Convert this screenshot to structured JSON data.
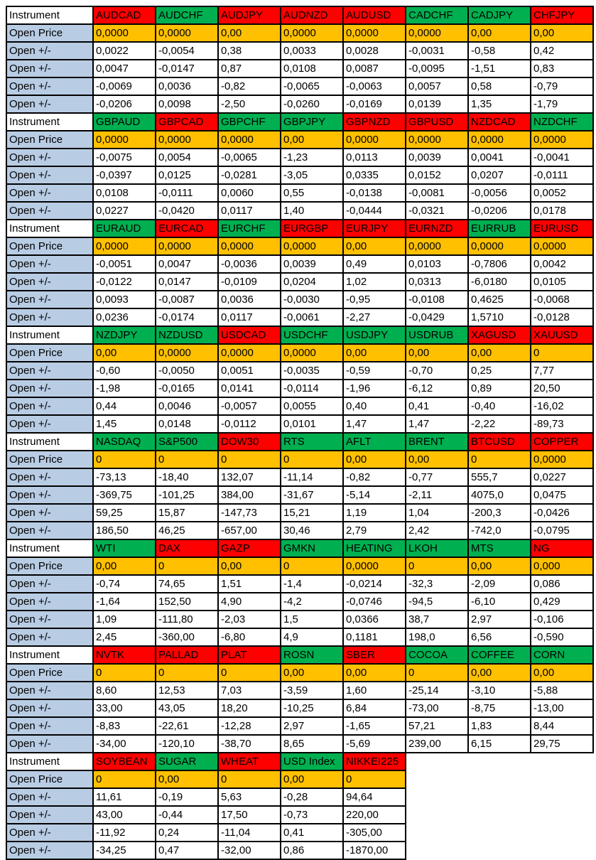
{
  "colors": {
    "red": "#ff0000",
    "green": "#00b050",
    "orange": "#ffc000",
    "label_blue": "#b8cce4",
    "border": "#000000"
  },
  "row_labels": {
    "instrument": "Instrument",
    "open_price": "Open Price",
    "open_change": "Open +/-"
  },
  "blocks": [
    {
      "instruments": [
        {
          "name": "AUDCAD",
          "color": "red",
          "open_price": "0,0000",
          "changes": [
            "0,0022",
            "0,0047",
            "-0,0069",
            "-0,0206"
          ]
        },
        {
          "name": "AUDCHF",
          "color": "green",
          "open_price": "0,0000",
          "changes": [
            "-0,0054",
            "-0,0147",
            "0,0036",
            "0,0098"
          ]
        },
        {
          "name": "AUDJPY",
          "color": "red",
          "open_price": "0,00",
          "changes": [
            "0,38",
            "0,87",
            "-0,82",
            "-2,50"
          ]
        },
        {
          "name": "AUDNZD",
          "color": "red",
          "open_price": "0,0000",
          "changes": [
            "0,0033",
            "0,0108",
            "-0,0065",
            "-0,0260"
          ]
        },
        {
          "name": "AUDUSD",
          "color": "red",
          "open_price": "0,0000",
          "changes": [
            "0,0028",
            "0,0087",
            "-0,0063",
            "-0,0169"
          ]
        },
        {
          "name": "CADCHF",
          "color": "green",
          "open_price": "0,0000",
          "changes": [
            "-0,0031",
            "-0,0095",
            "0,0057",
            "0,0139"
          ]
        },
        {
          "name": "CADJPY",
          "color": "green",
          "open_price": "0,00",
          "changes": [
            "-0,58",
            "-1,51",
            "0,58",
            "1,35"
          ]
        },
        {
          "name": "CHFJPY",
          "color": "red",
          "open_price": "0,00",
          "changes": [
            "0,42",
            "0,83",
            "-0,79",
            "-1,79"
          ]
        }
      ]
    },
    {
      "instruments": [
        {
          "name": "GBPAUD",
          "color": "green",
          "open_price": "0,0000",
          "changes": [
            "-0,0075",
            "-0,0397",
            "0,0108",
            "0,0227"
          ]
        },
        {
          "name": "GBPCAD",
          "color": "red",
          "open_price": "0,0000",
          "changes": [
            "0,0054",
            "0,0125",
            "-0,0111",
            "-0,0420"
          ]
        },
        {
          "name": "GBPCHF",
          "color": "green",
          "open_price": "0,0000",
          "changes": [
            "-0,0065",
            "-0,0281",
            "0,0060",
            "0,0117"
          ]
        },
        {
          "name": "GBPJPY",
          "color": "green",
          "open_price": "0,00",
          "changes": [
            "-1,23",
            "-3,05",
            "0,55",
            "1,40"
          ]
        },
        {
          "name": "GBPNZD",
          "color": "red",
          "open_price": "0,0000",
          "changes": [
            "0,0113",
            "0,0335",
            "-0,0138",
            "-0,0444"
          ]
        },
        {
          "name": "GBPUSD",
          "color": "red",
          "open_price": "0,0000",
          "changes": [
            "0,0039",
            "0,0152",
            "-0,0081",
            "-0,0321"
          ]
        },
        {
          "name": "NZDCAD",
          "color": "red",
          "open_price": "0,0000",
          "changes": [
            "0,0041",
            "0,0207",
            "-0,0056",
            "-0,0206"
          ]
        },
        {
          "name": "NZDCHF",
          "color": "green",
          "open_price": "0,0000",
          "changes": [
            "-0,0041",
            "-0,0111",
            "0,0052",
            "0,0178"
          ]
        }
      ]
    },
    {
      "instruments": [
        {
          "name": "EURAUD",
          "color": "green",
          "open_price": "0,0000",
          "changes": [
            "-0,0051",
            "-0,0122",
            "0,0093",
            "0,0236"
          ]
        },
        {
          "name": "EURCAD",
          "color": "red",
          "open_price": "0,0000",
          "changes": [
            "0,0047",
            "0,0147",
            "-0,0087",
            "-0,0174"
          ]
        },
        {
          "name": "EURCHF",
          "color": "green",
          "open_price": "0,0000",
          "changes": [
            "-0,0036",
            "-0,0109",
            "0,0036",
            "0,0117"
          ]
        },
        {
          "name": "EURGBP",
          "color": "red",
          "open_price": "0,0000",
          "changes": [
            "0,0039",
            "0,0204",
            "-0,0030",
            "-0,0061"
          ]
        },
        {
          "name": "EURJPY",
          "color": "red",
          "open_price": "0,00",
          "changes": [
            "0,49",
            "1,02",
            "-0,95",
            "-2,27"
          ]
        },
        {
          "name": "EURNZD",
          "color": "red",
          "open_price": "0,0000",
          "changes": [
            "0,0103",
            "0,0313",
            "-0,0108",
            "-0,0429"
          ]
        },
        {
          "name": "EURRUB",
          "color": "green",
          "open_price": "0,0000",
          "changes": [
            "-0,7806",
            "-6,0180",
            "0,4625",
            "1,5710"
          ]
        },
        {
          "name": "EURUSD",
          "color": "red",
          "open_price": "0,0000",
          "changes": [
            "0,0042",
            "0,0105",
            "-0,0068",
            "-0,0128"
          ]
        }
      ]
    },
    {
      "instruments": [
        {
          "name": "NZDJPY",
          "color": "green",
          "open_price": "0,00",
          "changes": [
            "-0,60",
            "-1,98",
            "0,44",
            "1,45"
          ]
        },
        {
          "name": "NZDUSD",
          "color": "green",
          "open_price": "0,0000",
          "changes": [
            "-0,0050",
            "-0,0165",
            "0,0046",
            "0,0148"
          ]
        },
        {
          "name": "USDCAD",
          "color": "red",
          "open_price": "0,0000",
          "changes": [
            "0,0051",
            "0,0141",
            "-0,0057",
            "-0,0112"
          ]
        },
        {
          "name": "USDCHF",
          "color": "green",
          "open_price": "0,0000",
          "changes": [
            "-0,0035",
            "-0,0114",
            "0,0055",
            "0,0101"
          ]
        },
        {
          "name": "USDJPY",
          "color": "green",
          "open_price": "0,00",
          "changes": [
            "-0,59",
            "-1,96",
            "0,40",
            "1,47"
          ]
        },
        {
          "name": "USDRUB",
          "color": "green",
          "open_price": "0,00",
          "changes": [
            "-0,70",
            "-6,12",
            "0,41",
            "1,47"
          ]
        },
        {
          "name": "XAGUSD",
          "color": "red",
          "open_price": "0,00",
          "changes": [
            "0,25",
            "0,89",
            "-0,40",
            "-2,22"
          ]
        },
        {
          "name": "XAUUSD",
          "color": "red",
          "open_price": "0",
          "changes": [
            "7,77",
            "20,50",
            "-16,02",
            "-89,73"
          ]
        }
      ]
    },
    {
      "instruments": [
        {
          "name": "NASDAQ",
          "color": "green",
          "open_price": "0",
          "changes": [
            "-73,13",
            "-369,75",
            "59,25",
            "186,50"
          ]
        },
        {
          "name": "S&P500",
          "color": "green",
          "open_price": "0",
          "changes": [
            "-18,40",
            "-101,25",
            "15,87",
            "46,25"
          ]
        },
        {
          "name": "DOW30",
          "color": "red",
          "open_price": "0",
          "changes": [
            "132,07",
            "384,00",
            "-147,73",
            "-657,00"
          ]
        },
        {
          "name": "RTS",
          "color": "green",
          "open_price": "0",
          "changes": [
            "-11,14",
            "-31,67",
            "15,21",
            "30,46"
          ]
        },
        {
          "name": "AFLT",
          "color": "green",
          "open_price": "0,00",
          "changes": [
            "-0,82",
            "-5,14",
            "1,19",
            "2,79"
          ]
        },
        {
          "name": "BRENT",
          "color": "green",
          "open_price": "0,00",
          "changes": [
            "-0,77",
            "-2,11",
            "1,04",
            "2,42"
          ]
        },
        {
          "name": "BTCUSD",
          "color": "red",
          "open_price": "0",
          "changes": [
            "555,7",
            "4075,0",
            "-200,3",
            "-742,0"
          ]
        },
        {
          "name": "COPPER",
          "color": "red",
          "open_price": "0,0000",
          "changes": [
            "0,0227",
            "0,0475",
            "-0,0426",
            "-0,0795"
          ]
        }
      ]
    },
    {
      "instruments": [
        {
          "name": "WTI",
          "color": "green",
          "open_price": "0,00",
          "changes": [
            "-0,74",
            "-1,64",
            "1,09",
            "2,45"
          ]
        },
        {
          "name": "DAX",
          "color": "red",
          "open_price": "0",
          "changes": [
            "74,65",
            "152,50",
            "-111,80",
            "-360,00"
          ]
        },
        {
          "name": "GAZP",
          "color": "red",
          "open_price": "0,00",
          "changes": [
            "1,51",
            "4,90",
            "-2,03",
            "-6,80"
          ]
        },
        {
          "name": "GMKN",
          "color": "green",
          "open_price": "0",
          "changes": [
            "-1,4",
            "-4,2",
            "1,5",
            "4,9"
          ]
        },
        {
          "name": "HEATING",
          "color": "green",
          "open_price": "0,0000",
          "changes": [
            "-0,0214",
            "-0,0746",
            "0,0366",
            "0,1181"
          ]
        },
        {
          "name": "LKOH",
          "color": "green",
          "open_price": "0",
          "changes": [
            "-32,3",
            "-94,5",
            "38,7",
            "198,0"
          ]
        },
        {
          "name": "MTS",
          "color": "green",
          "open_price": "0,00",
          "changes": [
            "-2,09",
            "-6,10",
            "2,97",
            "6,56"
          ]
        },
        {
          "name": "NG",
          "color": "red",
          "open_price": "0,000",
          "changes": [
            "0,086",
            "0,429",
            "-0,106",
            "-0,590"
          ]
        }
      ]
    },
    {
      "instruments": [
        {
          "name": "NVTK",
          "color": "red",
          "open_price": "0",
          "changes": [
            "8,60",
            "33,00",
            "-8,83",
            "-34,00"
          ]
        },
        {
          "name": "PALLAD",
          "color": "red",
          "open_price": "0",
          "changes": [
            "12,53",
            "43,05",
            "-22,61",
            "-120,10"
          ]
        },
        {
          "name": "PLAT",
          "color": "red",
          "open_price": "0",
          "changes": [
            "7,03",
            "18,20",
            "-12,28",
            "-38,70"
          ]
        },
        {
          "name": "ROSN",
          "color": "green",
          "open_price": "0,00",
          "changes": [
            "-3,59",
            "-10,25",
            "2,97",
            "8,65"
          ]
        },
        {
          "name": "SBER",
          "color": "red",
          "open_price": "0,00",
          "changes": [
            "1,60",
            "6,84",
            "-1,65",
            "-5,69"
          ]
        },
        {
          "name": "COCOA",
          "color": "green",
          "open_price": "0",
          "changes": [
            "-25,14",
            "-73,00",
            "57,21",
            "239,00"
          ]
        },
        {
          "name": "COFFEE",
          "color": "green",
          "open_price": "0,00",
          "changes": [
            "-3,10",
            "-8,75",
            "1,83",
            "6,15"
          ]
        },
        {
          "name": "CORN",
          "color": "green",
          "open_price": "0,00",
          "changes": [
            "-5,88",
            "-13,00",
            "8,44",
            "29,75"
          ]
        }
      ]
    },
    {
      "instruments": [
        {
          "name": "SOYBEAN",
          "color": "red",
          "open_price": "0",
          "changes": [
            "11,61",
            "43,00",
            "-11,92",
            "-34,25"
          ]
        },
        {
          "name": "SUGAR",
          "color": "green",
          "open_price": "0,00",
          "changes": [
            "-0,19",
            "-0,44",
            "0,24",
            "0,47"
          ]
        },
        {
          "name": "WHEAT",
          "color": "red",
          "open_price": "0",
          "changes": [
            "5,63",
            "17,50",
            "-11,04",
            "-32,00"
          ]
        },
        {
          "name": "USD Index",
          "color": "green",
          "open_price": "0,00",
          "changes": [
            "-0,28",
            "-0,73",
            "0,41",
            "0,86"
          ]
        },
        {
          "name": "NIKKEI225",
          "color": "red",
          "open_price": "0",
          "changes": [
            "94,64",
            "220,00",
            "-305,00",
            "-1870,00"
          ]
        }
      ]
    }
  ]
}
